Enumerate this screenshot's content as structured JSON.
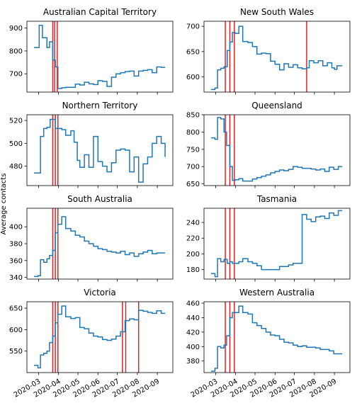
{
  "ylabel": "Average contacts",
  "x_tick_labels": [
    "2020-03",
    "2020-04",
    "2020-05",
    "2020-06",
    "2020-07",
    "2020-08",
    "2020-09"
  ],
  "colors": {
    "series": "#1f77b4",
    "event_line": "#d62728"
  },
  "chart_data": [
    {
      "type": "line",
      "step": true,
      "title": "Australian Capital Territory",
      "ylim": [
        620,
        930
      ],
      "yticks": [
        700,
        800,
        900
      ],
      "events": [
        "2020-03-23",
        "2020-03-26",
        "2020-03-30"
      ],
      "points": [
        [
          "2020-02-23",
          815
        ],
        [
          "2020-03-02",
          912
        ],
        [
          "2020-03-07",
          858
        ],
        [
          "2020-03-14",
          815
        ],
        [
          "2020-03-18",
          840
        ],
        [
          "2020-03-23",
          760
        ],
        [
          "2020-03-27",
          730
        ],
        [
          "2020-03-31",
          636
        ],
        [
          "2020-04-06",
          639
        ],
        [
          "2020-04-12",
          641
        ],
        [
          "2020-04-20",
          641
        ],
        [
          "2020-04-27",
          655
        ],
        [
          "2020-05-04",
          651
        ],
        [
          "2020-05-11",
          663
        ],
        [
          "2020-05-18",
          656
        ],
        [
          "2020-05-25",
          653
        ],
        [
          "2020-06-01",
          670
        ],
        [
          "2020-06-08",
          667
        ],
        [
          "2020-06-15",
          645
        ],
        [
          "2020-06-22",
          685
        ],
        [
          "2020-06-29",
          700
        ],
        [
          "2020-07-06",
          705
        ],
        [
          "2020-07-13",
          710
        ],
        [
          "2020-07-20",
          712
        ],
        [
          "2020-07-27",
          690
        ],
        [
          "2020-08-03",
          712
        ],
        [
          "2020-08-10",
          715
        ],
        [
          "2020-08-17",
          718
        ],
        [
          "2020-08-24",
          705
        ],
        [
          "2020-08-31",
          730
        ],
        [
          "2020-09-07",
          728
        ],
        [
          "2020-09-13",
          728
        ]
      ]
    },
    {
      "type": "line",
      "step": true,
      "title": "New South Wales",
      "ylim": [
        570,
        710
      ],
      "yticks": [
        600,
        650,
        700
      ],
      "events": [
        "2020-03-16",
        "2020-03-23",
        "2020-03-30",
        "2020-07-20"
      ],
      "points": [
        [
          "2020-02-23",
          575
        ],
        [
          "2020-02-29",
          578
        ],
        [
          "2020-03-04",
          614
        ],
        [
          "2020-03-09",
          617
        ],
        [
          "2020-03-14",
          620
        ],
        [
          "2020-03-19",
          652
        ],
        [
          "2020-03-23",
          669
        ],
        [
          "2020-03-27",
          688
        ],
        [
          "2020-03-31",
          686
        ],
        [
          "2020-04-06",
          700
        ],
        [
          "2020-04-12",
          670
        ],
        [
          "2020-04-20",
          668
        ],
        [
          "2020-04-27",
          660
        ],
        [
          "2020-05-04",
          645
        ],
        [
          "2020-05-11",
          647
        ],
        [
          "2020-05-18",
          646
        ],
        [
          "2020-05-25",
          631
        ],
        [
          "2020-06-01",
          625
        ],
        [
          "2020-06-08",
          614
        ],
        [
          "2020-06-15",
          626
        ],
        [
          "2020-06-22",
          619
        ],
        [
          "2020-06-29",
          624
        ],
        [
          "2020-07-06",
          618
        ],
        [
          "2020-07-13",
          616
        ],
        [
          "2020-07-20",
          618
        ],
        [
          "2020-07-24",
          632
        ],
        [
          "2020-07-31",
          628
        ],
        [
          "2020-08-07",
          632
        ],
        [
          "2020-08-14",
          622
        ],
        [
          "2020-08-21",
          628
        ],
        [
          "2020-08-28",
          618
        ],
        [
          "2020-09-01",
          615
        ],
        [
          "2020-09-05",
          622
        ],
        [
          "2020-09-13",
          622
        ]
      ]
    },
    {
      "type": "line",
      "step": true,
      "title": "Northern Territory",
      "ylim": [
        463,
        525
      ],
      "yticks": [
        480,
        500,
        520
      ],
      "events": [
        "2020-03-23",
        "2020-03-27",
        "2020-03-31"
      ],
      "points": [
        [
          "2020-02-23",
          474
        ],
        [
          "2020-02-29",
          474
        ],
        [
          "2020-03-04",
          506
        ],
        [
          "2020-03-09",
          513
        ],
        [
          "2020-03-14",
          514
        ],
        [
          "2020-03-19",
          521
        ],
        [
          "2020-03-23",
          521
        ],
        [
          "2020-03-27",
          513
        ],
        [
          "2020-03-31",
          513
        ],
        [
          "2020-04-06",
          512
        ],
        [
          "2020-04-12",
          507
        ],
        [
          "2020-04-20",
          511
        ],
        [
          "2020-04-25",
          501
        ],
        [
          "2020-04-30",
          485
        ],
        [
          "2020-05-04",
          479
        ],
        [
          "2020-05-11",
          490
        ],
        [
          "2020-05-18",
          479
        ],
        [
          "2020-05-25",
          506
        ],
        [
          "2020-06-01",
          484
        ],
        [
          "2020-06-08",
          480
        ],
        [
          "2020-06-15",
          475
        ],
        [
          "2020-06-22",
          483
        ],
        [
          "2020-06-29",
          494
        ],
        [
          "2020-07-06",
          495
        ],
        [
          "2020-07-13",
          494
        ],
        [
          "2020-07-20",
          475
        ],
        [
          "2020-07-27",
          488
        ],
        [
          "2020-08-03",
          466
        ],
        [
          "2020-08-10",
          482
        ],
        [
          "2020-08-17",
          488
        ],
        [
          "2020-08-24",
          500
        ],
        [
          "2020-08-31",
          506
        ],
        [
          "2020-09-07",
          500
        ],
        [
          "2020-09-13",
          488
        ]
      ]
    },
    {
      "type": "line",
      "step": true,
      "title": "Queensland",
      "ylim": [
        645,
        850
      ],
      "yticks": [
        650,
        700,
        750,
        800,
        850
      ],
      "events": [
        "2020-03-16",
        "2020-03-23",
        "2020-03-30"
      ],
      "points": [
        [
          "2020-02-23",
          783
        ],
        [
          "2020-02-29",
          779
        ],
        [
          "2020-03-04",
          842
        ],
        [
          "2020-03-09",
          838
        ],
        [
          "2020-03-14",
          800
        ],
        [
          "2020-03-18",
          761
        ],
        [
          "2020-03-23",
          700
        ],
        [
          "2020-03-27",
          660
        ],
        [
          "2020-03-31",
          662
        ],
        [
          "2020-04-06",
          665
        ],
        [
          "2020-04-12",
          658
        ],
        [
          "2020-04-20",
          658
        ],
        [
          "2020-04-27",
          664
        ],
        [
          "2020-05-04",
          668
        ],
        [
          "2020-05-11",
          672
        ],
        [
          "2020-05-18",
          676
        ],
        [
          "2020-05-25",
          682
        ],
        [
          "2020-06-01",
          686
        ],
        [
          "2020-06-08",
          690
        ],
        [
          "2020-06-15",
          688
        ],
        [
          "2020-06-22",
          692
        ],
        [
          "2020-06-29",
          700
        ],
        [
          "2020-07-06",
          698
        ],
        [
          "2020-07-13",
          695
        ],
        [
          "2020-07-20",
          695
        ],
        [
          "2020-07-27",
          693
        ],
        [
          "2020-08-03",
          690
        ],
        [
          "2020-08-10",
          693
        ],
        [
          "2020-08-17",
          686
        ],
        [
          "2020-08-24",
          698
        ],
        [
          "2020-08-31",
          692
        ],
        [
          "2020-09-07",
          700
        ],
        [
          "2020-09-13",
          700
        ]
      ]
    },
    {
      "type": "line",
      "step": true,
      "title": "South Australia",
      "ylim": [
        338,
        422
      ],
      "yticks": [
        340,
        360,
        380,
        400
      ],
      "events": [
        "2020-03-23",
        "2020-03-27",
        "2020-03-31"
      ],
      "points": [
        [
          "2020-02-23",
          341
        ],
        [
          "2020-02-29",
          342
        ],
        [
          "2020-03-04",
          361
        ],
        [
          "2020-03-09",
          358
        ],
        [
          "2020-03-14",
          362
        ],
        [
          "2020-03-18",
          366
        ],
        [
          "2020-03-23",
          372
        ],
        [
          "2020-03-27",
          393
        ],
        [
          "2020-03-31",
          403
        ],
        [
          "2020-04-06",
          412
        ],
        [
          "2020-04-12",
          398
        ],
        [
          "2020-04-20",
          395
        ],
        [
          "2020-04-27",
          390
        ],
        [
          "2020-05-04",
          388
        ],
        [
          "2020-05-11",
          383
        ],
        [
          "2020-05-18",
          380
        ],
        [
          "2020-05-25",
          377
        ],
        [
          "2020-06-01",
          374
        ],
        [
          "2020-06-08",
          373
        ],
        [
          "2020-06-15",
          371
        ],
        [
          "2020-06-22",
          370
        ],
        [
          "2020-06-29",
          369
        ],
        [
          "2020-07-06",
          371
        ],
        [
          "2020-07-13",
          367
        ],
        [
          "2020-07-20",
          369
        ],
        [
          "2020-07-27",
          365
        ],
        [
          "2020-08-03",
          368
        ],
        [
          "2020-08-10",
          370
        ],
        [
          "2020-08-17",
          372
        ],
        [
          "2020-08-24",
          368
        ],
        [
          "2020-08-31",
          369
        ],
        [
          "2020-09-07",
          369
        ],
        [
          "2020-09-13",
          369
        ]
      ]
    },
    {
      "type": "line",
      "step": true,
      "title": "Tasmania",
      "ylim": [
        168,
        258
      ],
      "yticks": [
        180,
        200,
        220,
        240
      ],
      "events": [
        "2020-03-16",
        "2020-03-23",
        "2020-03-30"
      ],
      "points": [
        [
          "2020-02-23",
          175
        ],
        [
          "2020-02-29",
          171
        ],
        [
          "2020-03-04",
          194
        ],
        [
          "2020-03-09",
          190
        ],
        [
          "2020-03-14",
          193
        ],
        [
          "2020-03-19",
          188
        ],
        [
          "2020-03-23",
          190
        ],
        [
          "2020-03-27",
          188
        ],
        [
          "2020-03-31",
          188
        ],
        [
          "2020-04-06",
          190
        ],
        [
          "2020-04-12",
          194
        ],
        [
          "2020-04-20",
          190
        ],
        [
          "2020-04-27",
          188
        ],
        [
          "2020-05-04",
          185
        ],
        [
          "2020-05-11",
          180
        ],
        [
          "2020-05-18",
          180
        ],
        [
          "2020-05-25",
          180
        ],
        [
          "2020-06-01",
          180
        ],
        [
          "2020-06-08",
          184
        ],
        [
          "2020-06-15",
          184
        ],
        [
          "2020-06-22",
          186
        ],
        [
          "2020-06-29",
          188
        ],
        [
          "2020-07-06",
          188
        ],
        [
          "2020-07-13",
          250
        ],
        [
          "2020-07-20",
          244
        ],
        [
          "2020-07-27",
          241
        ],
        [
          "2020-08-03",
          247
        ],
        [
          "2020-08-10",
          248
        ],
        [
          "2020-08-17",
          245
        ],
        [
          "2020-08-24",
          252
        ],
        [
          "2020-08-31",
          249
        ],
        [
          "2020-09-07",
          255
        ],
        [
          "2020-09-13",
          255
        ]
      ]
    },
    {
      "type": "line",
      "step": true,
      "title": "Victoria",
      "ylim": [
        500,
        665
      ],
      "yticks": [
        550,
        600,
        650
      ],
      "events": [
        "2020-03-23",
        "2020-03-27",
        "2020-03-31",
        "2020-07-09",
        "2020-07-14",
        "2020-08-03"
      ],
      "points": [
        [
          "2020-02-23",
          517
        ],
        [
          "2020-02-29",
          511
        ],
        [
          "2020-03-04",
          541
        ],
        [
          "2020-03-09",
          545
        ],
        [
          "2020-03-14",
          550
        ],
        [
          "2020-03-18",
          570
        ],
        [
          "2020-03-23",
          585
        ],
        [
          "2020-03-27",
          616
        ],
        [
          "2020-03-31",
          636
        ],
        [
          "2020-04-06",
          655
        ],
        [
          "2020-04-12",
          630
        ],
        [
          "2020-04-20",
          626
        ],
        [
          "2020-04-27",
          628
        ],
        [
          "2020-05-04",
          605
        ],
        [
          "2020-05-11",
          602
        ],
        [
          "2020-05-18",
          592
        ],
        [
          "2020-05-25",
          585
        ],
        [
          "2020-06-01",
          583
        ],
        [
          "2020-06-08",
          577
        ],
        [
          "2020-06-15",
          575
        ],
        [
          "2020-06-22",
          578
        ],
        [
          "2020-06-29",
          585
        ],
        [
          "2020-07-06",
          595
        ],
        [
          "2020-07-13",
          621
        ],
        [
          "2020-07-20",
          625
        ],
        [
          "2020-07-27",
          623
        ],
        [
          "2020-08-03",
          645
        ],
        [
          "2020-08-10",
          643
        ],
        [
          "2020-08-17",
          640
        ],
        [
          "2020-08-24",
          638
        ],
        [
          "2020-08-31",
          644
        ],
        [
          "2020-09-07",
          638
        ],
        [
          "2020-09-13",
          638
        ]
      ]
    },
    {
      "type": "line",
      "step": true,
      "title": "Western Australia",
      "ylim": [
        364,
        462
      ],
      "yticks": [
        380,
        400,
        420,
        440,
        460
      ],
      "events": [
        "2020-03-16",
        "2020-03-23",
        "2020-03-30"
      ],
      "points": [
        [
          "2020-02-23",
          366
        ],
        [
          "2020-02-29",
          370
        ],
        [
          "2020-03-04",
          400
        ],
        [
          "2020-03-09",
          398
        ],
        [
          "2020-03-14",
          402
        ],
        [
          "2020-03-18",
          415
        ],
        [
          "2020-03-23",
          440
        ],
        [
          "2020-03-27",
          447
        ],
        [
          "2020-03-31",
          447
        ],
        [
          "2020-04-06",
          456
        ],
        [
          "2020-04-12",
          447
        ],
        [
          "2020-04-20",
          445
        ],
        [
          "2020-04-27",
          433
        ],
        [
          "2020-05-04",
          429
        ],
        [
          "2020-05-11",
          425
        ],
        [
          "2020-05-18",
          420
        ],
        [
          "2020-05-25",
          416
        ],
        [
          "2020-06-01",
          415
        ],
        [
          "2020-06-08",
          410
        ],
        [
          "2020-06-15",
          406
        ],
        [
          "2020-06-22",
          405
        ],
        [
          "2020-06-29",
          402
        ],
        [
          "2020-07-06",
          400
        ],
        [
          "2020-07-13",
          401
        ],
        [
          "2020-07-20",
          399
        ],
        [
          "2020-07-27",
          399
        ],
        [
          "2020-08-03",
          398
        ],
        [
          "2020-08-10",
          396
        ],
        [
          "2020-08-17",
          396
        ],
        [
          "2020-08-24",
          394
        ],
        [
          "2020-08-31",
          390
        ],
        [
          "2020-09-07",
          390
        ],
        [
          "2020-09-13",
          390
        ]
      ]
    }
  ]
}
